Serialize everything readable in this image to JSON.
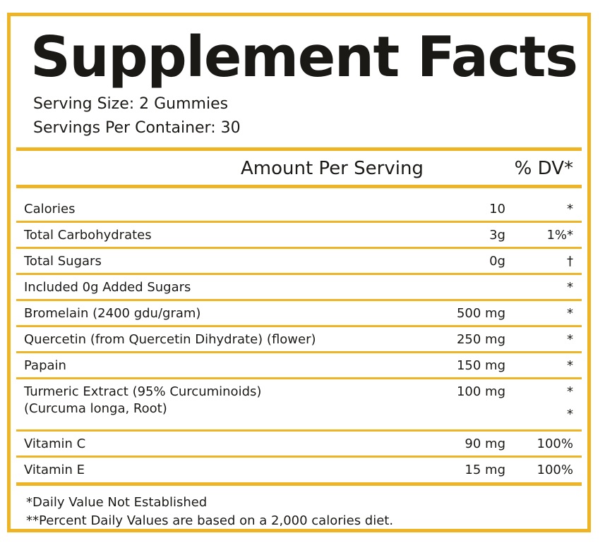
{
  "panel": {
    "title": "Supplement Facts",
    "serving_size": "Serving Size: 2 Gummies",
    "servings_per_container": "Servings Per Container: 30",
    "border_color": "#eeb423"
  },
  "header": {
    "amount": "Amount Per Serving",
    "dv": "% DV*"
  },
  "rows": [
    {
      "name": "Calories",
      "amount": "10",
      "dv": "*"
    },
    {
      "name": "Total Carbohydrates",
      "amount": "3g",
      "dv": "1%*"
    },
    {
      "name": "Total Sugars",
      "amount": "0g",
      "dv": "†"
    },
    {
      "name": "Included 0g Added Sugars",
      "amount": "",
      "dv": "*"
    },
    {
      "name": "Bromelain (2400 gdu/gram)",
      "amount": "500 mg",
      "dv": "*"
    },
    {
      "name": "Quercetin (from Quercetin Dihydrate) (flower)",
      "amount": "250 mg",
      "dv": "*"
    },
    {
      "name": "Papain",
      "amount": "150 mg",
      "dv": "*"
    },
    {
      "name": "Turmeric Extract (95% Curcuminoids)",
      "sub": "(Curcuma longa, Root)",
      "amount": "100 mg",
      "dv": "*",
      "dv2": "*"
    },
    {
      "name": "Vitamin C",
      "amount": "90 mg",
      "dv": "100%"
    },
    {
      "name": "Vitamin E",
      "amount": "15 mg",
      "dv": "100%"
    }
  ],
  "footnotes": {
    "one": "*Daily Value Not Established",
    "two": "**Percent Daily Values are based on a 2,000 calories diet."
  }
}
